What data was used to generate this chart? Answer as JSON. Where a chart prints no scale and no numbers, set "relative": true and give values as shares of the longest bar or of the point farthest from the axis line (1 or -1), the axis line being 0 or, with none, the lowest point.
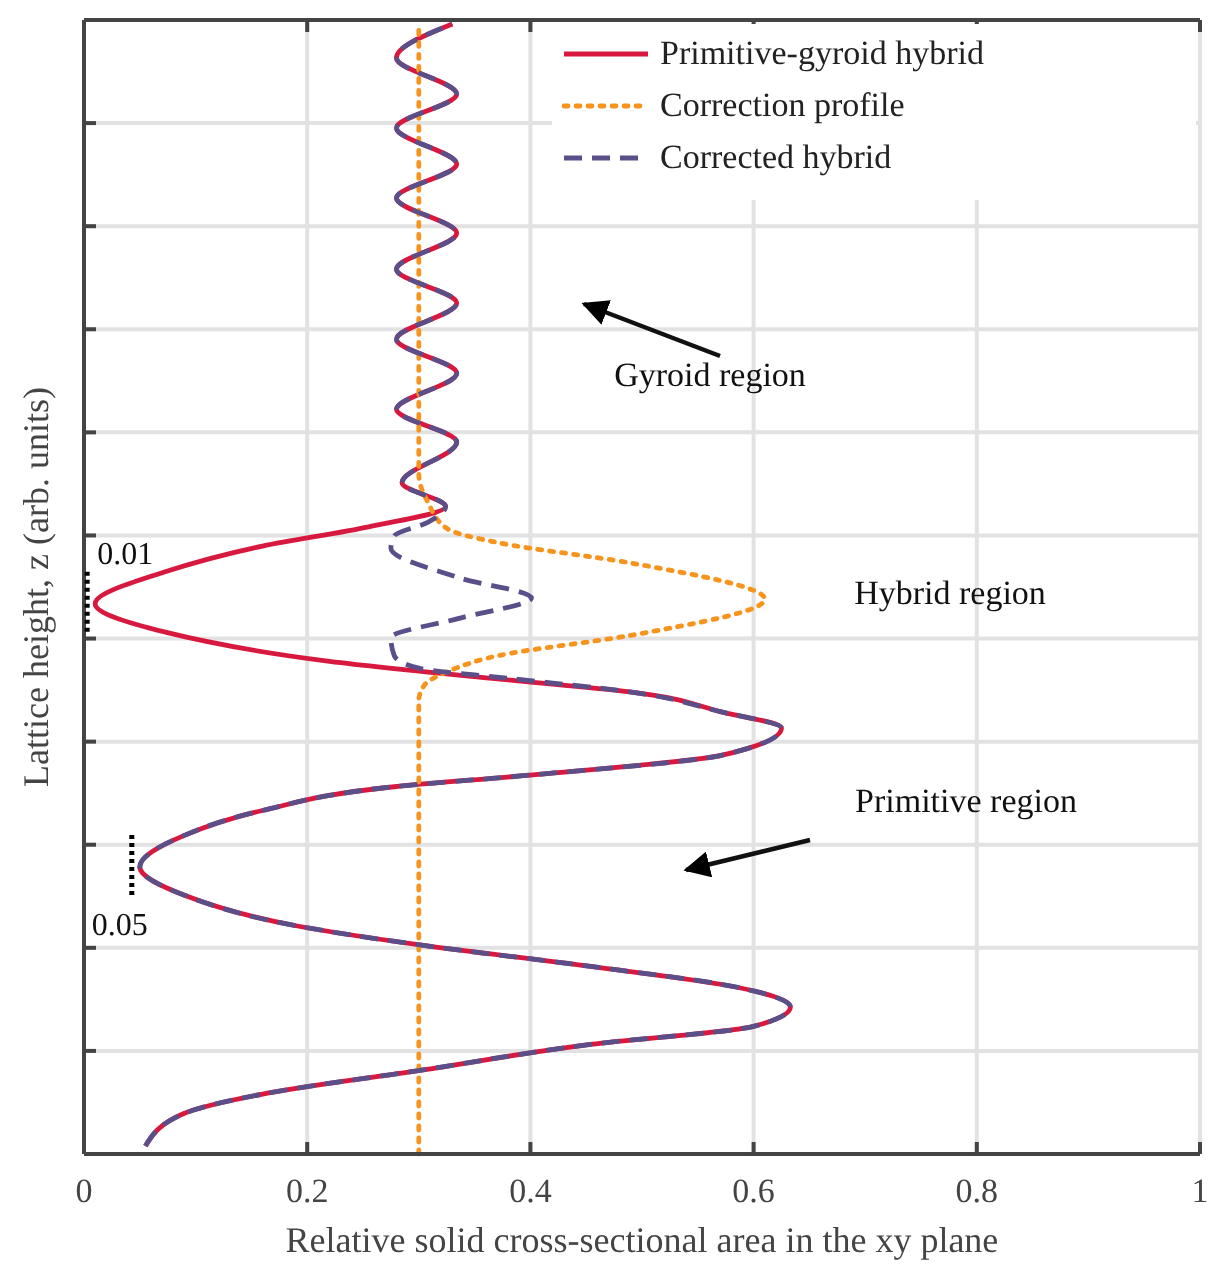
{
  "chart_data": {
    "type": "line",
    "xlabel": "Relative solid cross-sectional area in the xy plane",
    "ylabel": "Lattice height, z (arb. units)",
    "relative": true,
    "xlim": [
      0,
      1
    ],
    "xticks": [
      0,
      0.2,
      0.4,
      0.6,
      0.8,
      1
    ],
    "tick_labels": "x",
    "grid": true,
    "legend": "top right",
    "marker": "none",
    "series": [
      {
        "name": "Primitive-gyroid hybrid",
        "color": "#d7193f",
        "line_style": "solid",
        "x": [
          0.055,
          0.09,
          0.16,
          0.301,
          0.454,
          0.6,
          0.633,
          0.583,
          0.454,
          0.301,
          0.19,
          0.09,
          0.05,
          0.09,
          0.16,
          0.278,
          0.396,
          0.572,
          0.625,
          0.572,
          0.489,
          0.396,
          0.22,
          0.072,
          0.01,
          0.072,
          0.16,
          0.255,
          0.324,
          0.285,
          0.334,
          0.28,
          0.334,
          0.28,
          0.334,
          0.28,
          0.334,
          0.28,
          0.334,
          0.28,
          0.334,
          0.28,
          0.33
        ],
        "values": [
          0.007,
          0.036,
          0.053,
          0.074,
          0.097,
          0.113,
          0.13,
          0.148,
          0.166,
          0.185,
          0.202,
          0.229,
          0.254,
          0.282,
          0.304,
          0.325,
          0.335,
          0.353,
          0.377,
          0.391,
          0.409,
          0.418,
          0.436,
          0.462,
          0.487,
          0.515,
          0.538,
          0.555,
          0.573,
          0.594,
          0.63,
          0.659,
          0.691,
          0.721,
          0.753,
          0.783,
          0.815,
          0.846,
          0.876,
          0.908,
          0.938,
          0.97,
          1
        ]
      },
      {
        "name": "Correction profile",
        "color": "#f7941d",
        "line_style": "dotted",
        "x": [
          0.3,
          0.3,
          0.305,
          0.326,
          0.371,
          0.49,
          0.61,
          0.49,
          0.371,
          0.326,
          0.308,
          0.3,
          0.3
        ],
        "values": [
          0,
          0.401,
          0.415,
          0.427,
          0.441,
          0.459,
          0.491,
          0.523,
          0.541,
          0.553,
          0.577,
          0.602,
          1
        ]
      },
      {
        "name": "Corrected hybrid",
        "color": "#5b4f8a",
        "line_style": "dashed",
        "x": [
          0.055,
          0.09,
          0.16,
          0.301,
          0.454,
          0.6,
          0.633,
          0.583,
          0.454,
          0.301,
          0.19,
          0.09,
          0.05,
          0.09,
          0.16,
          0.278,
          0.396,
          0.572,
          0.625,
          0.572,
          0.489,
          0.38,
          0.3,
          0.278,
          0.275,
          0.336,
          0.401,
          0.336,
          0.275,
          0.278,
          0.308,
          0.324,
          0.285,
          0.334,
          0.28,
          0.334,
          0.28,
          0.334,
          0.28,
          0.334,
          0.28,
          0.334,
          0.28,
          0.334,
          0.28,
          0.33
        ],
        "values": [
          0.007,
          0.036,
          0.053,
          0.074,
          0.097,
          0.113,
          0.13,
          0.148,
          0.166,
          0.185,
          0.202,
          0.229,
          0.254,
          0.282,
          0.304,
          0.325,
          0.335,
          0.353,
          0.377,
          0.391,
          0.409,
          0.421,
          0.43,
          0.441,
          0.457,
          0.474,
          0.492,
          0.51,
          0.536,
          0.547,
          0.559,
          0.573,
          0.594,
          0.63,
          0.659,
          0.691,
          0.721,
          0.753,
          0.783,
          0.815,
          0.846,
          0.876,
          0.908,
          0.938,
          0.97,
          1
        ]
      }
    ],
    "annotations": [
      "Gyroid region",
      "Hybrid region",
      "Primitive region",
      {
        "text": "0.01",
        "x": 0.01,
        "y": 0.487
      },
      {
        "text": "0.05",
        "x": 0.05,
        "y": 0.254
      }
    ]
  }
}
